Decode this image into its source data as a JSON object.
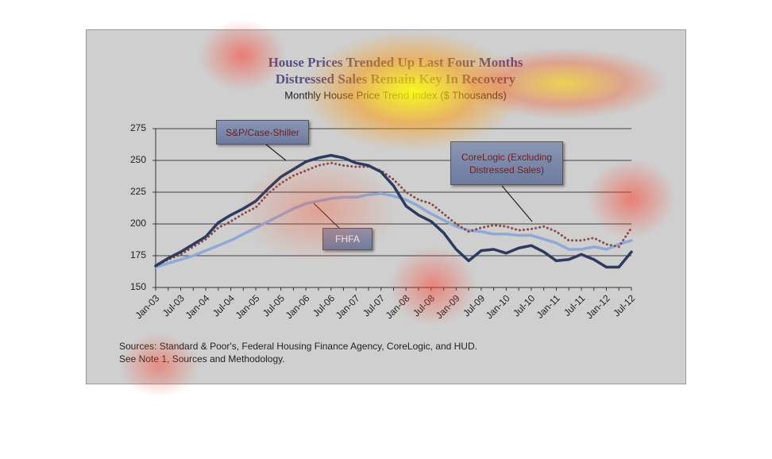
{
  "chart_data": {
    "type": "line",
    "title": [
      "House Prices Trended Up Last Four Months",
      "Distressed Sales Remain Key In Recovery"
    ],
    "subtitle": "Monthly House Price Trend Index ($ Thousands)",
    "categories": [
      "Jan-03",
      null,
      "Jul-03",
      null,
      "Jan-04",
      null,
      "Jul-04",
      null,
      "Jan-05",
      null,
      "Jul-05",
      null,
      "Jan-06",
      null,
      "Jul-06",
      null,
      "Jan-07",
      null,
      "Jul-07",
      null,
      "Jan-08",
      null,
      "Jul-08",
      null,
      "Jan-09",
      null,
      "Jul-09",
      null,
      "Jan-10",
      null,
      "Jul-10",
      null,
      "Jan-11",
      null,
      "Jul-11",
      null,
      "Jan-12",
      null,
      "Jul-12"
    ],
    "series": [
      {
        "name": "S&P/Case-Shiller",
        "color": "#2c3b5e",
        "dash": "solid",
        "values": [
          167,
          173,
          178,
          184,
          190,
          201,
          207,
          212,
          218,
          228,
          237,
          243,
          249,
          252,
          254,
          252,
          248,
          246,
          241,
          230,
          214,
          207,
          202,
          193,
          180,
          171,
          179,
          180,
          177,
          181,
          183,
          178,
          171,
          172,
          176,
          172,
          166,
          166,
          178
        ]
      },
      {
        "name": "CoreLogic (Excluding Distressed Sales)",
        "color": "#8a4a4a",
        "dash": "dotted",
        "values": [
          167,
          172,
          176,
          182,
          188,
          197,
          202,
          208,
          213,
          224,
          232,
          238,
          242,
          246,
          248,
          246,
          245,
          245,
          242,
          235,
          225,
          219,
          216,
          208,
          200,
          194,
          197,
          199,
          198,
          195,
          196,
          198,
          194,
          187,
          187,
          189,
          184,
          182,
          197
        ]
      },
      {
        "name": "FHFA",
        "color": "#8fa9d6",
        "dash": "solid",
        "values": [
          166,
          169,
          172,
          175,
          179,
          183,
          187,
          192,
          197,
          202,
          207,
          212,
          216,
          218,
          220,
          221,
          221,
          223,
          224,
          222,
          219,
          214,
          208,
          203,
          198,
          195,
          194,
          192,
          192,
          191,
          191,
          188,
          185,
          180,
          180,
          182,
          180,
          184,
          187
        ]
      }
    ],
    "ylim": [
      150,
      275
    ],
    "yticks": [
      150,
      175,
      200,
      225,
      250,
      275
    ],
    "grid": true,
    "sources": [
      "Sources:  Standard & Poor's, Federal Housing Finance Agency, CoreLogic, and HUD.",
      "See Note 1, Sources and Methodology."
    ]
  }
}
